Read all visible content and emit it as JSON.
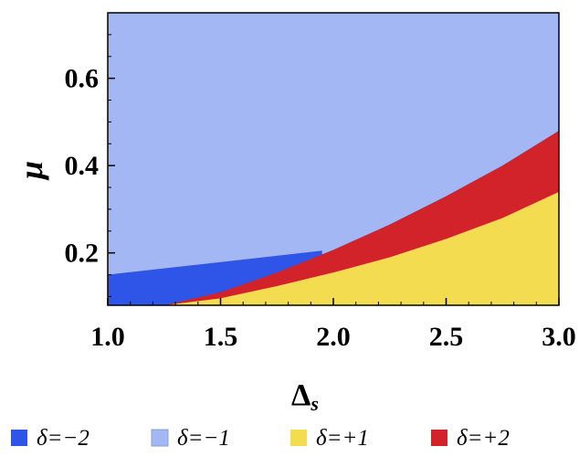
{
  "chart_data": {
    "type": "region",
    "xlabel": "Δ",
    "xlabel_subscript": "s",
    "ylabel": "μ",
    "xlim": [
      1.0,
      3.0
    ],
    "ylim": [
      0.08,
      0.75
    ],
    "x_ticks": [
      1.0,
      1.5,
      2.0,
      2.5,
      3.0
    ],
    "x_tick_labels": [
      "1.0",
      "1.5",
      "2.0",
      "2.5",
      "3.0"
    ],
    "y_ticks": [
      0.2,
      0.4,
      0.6
    ],
    "y_tick_labels": [
      "0.2",
      "0.4",
      "0.6"
    ],
    "legend_position": "bottom",
    "colors": {
      "delta_minus_2": "#2f55e8",
      "delta_minus_1": "#a3b7f4",
      "delta_plus_1": "#f4dc50",
      "delta_plus_2": "#d2232a"
    },
    "boundaries": {
      "upper_red": {
        "x": [
          1.0,
          1.25,
          1.5,
          1.75,
          2.0,
          2.25,
          2.5,
          2.75,
          3.0
        ],
        "y": [
          0.08,
          0.08,
          0.11,
          0.155,
          0.207,
          0.265,
          0.33,
          0.4,
          0.48
        ]
      },
      "upper_yellow": {
        "x": [
          1.25,
          1.5,
          1.75,
          2.0,
          2.25,
          2.5,
          2.75,
          3.0
        ],
        "y": [
          0.08,
          0.096,
          0.124,
          0.155,
          0.19,
          0.232,
          0.28,
          0.34
        ]
      },
      "upper_blue": {
        "x": [
          1.0,
          1.95
        ],
        "y": [
          0.15,
          0.205
        ]
      }
    },
    "series": [
      {
        "name": "δ=−2",
        "color": "#2f55e8"
      },
      {
        "name": "δ=−1",
        "color": "#a3b7f4"
      },
      {
        "name": "δ=+1",
        "color": "#f4dc50"
      },
      {
        "name": "δ=+2",
        "color": "#d2232a"
      }
    ]
  }
}
